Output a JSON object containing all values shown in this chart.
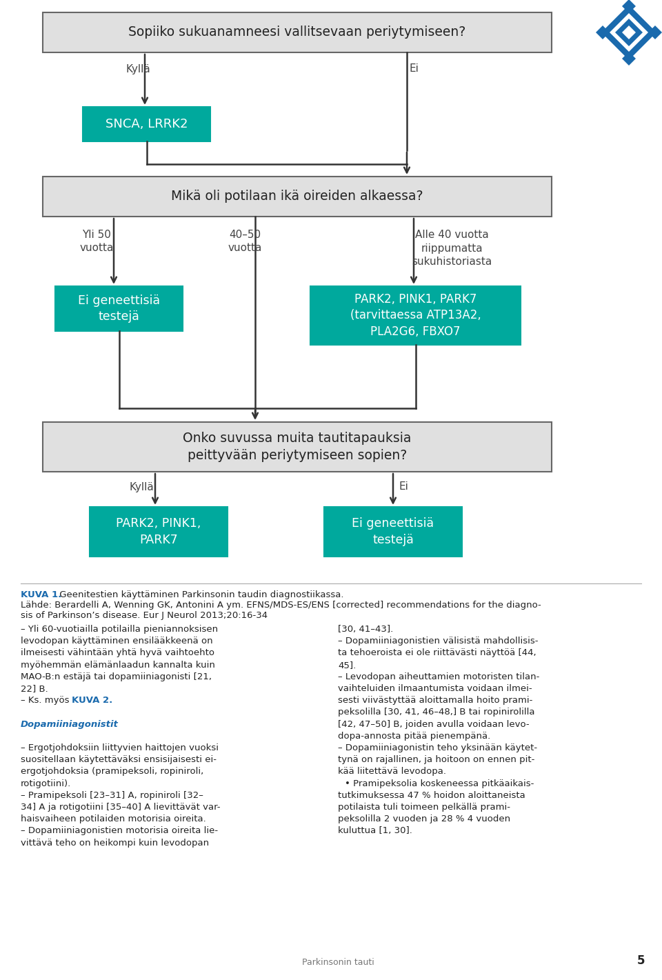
{
  "bg_color": "#ffffff",
  "teal_color": "#00a99d",
  "box_border_color": "#666666",
  "box_bg_light": "#e0e0e0",
  "arrow_color": "#333333",
  "logo_color": "#1a6aad",
  "logo_light": "#4488cc",
  "box1_text": "Sopiiko sukuanamneesi vallitsevaan periytymiseen?",
  "box2_text": "SNCA, LRRK2",
  "box3_text": "Mikä oli potilaan ikä oireiden alkaessa?",
  "box4_text": "Ei geneettisiä\ntestejä",
  "box5_text": "PARK2, PINK1, PARK7\n(tarvittaessa ATP13A2,\nPLA2G6, FBXO7",
  "box6_text": "Onko suvussa muita tautitapauksia\npeittyvään periytymiseen sopien?",
  "box7_text": "PARK2, PINK1,\nPARK7",
  "box8_text": "Ei geneettisiä\ntestejä",
  "label_kylla1": "Kyllä",
  "label_ei1": "Ei",
  "label_yli50": "Yli 50\nvuotta",
  "label_4050": "40–50\nvuotta",
  "label_alle40": "Alle 40 vuotta\nriippumatta\nsukuhistoriasta",
  "label_kylla2": "Kyllä",
  "label_ei2": "Ei",
  "caption_bold": "KUVA 1.",
  "caption_text": " Geenitestien käyttäminen Parkinsonin taudin diagnostiikassa.",
  "caption_line2a": "Lähde: Berardelli A, Wenning GK, Antonini A ym. EFNS/MDS-ES/ENS [corrected] recommendations for the diagno-",
  "caption_line2b": "sis of Parkinson’s disease. Eur J Neurol 2013;20:16-34",
  "page_number": "5",
  "footer_text": "Parkinsonin tauti"
}
